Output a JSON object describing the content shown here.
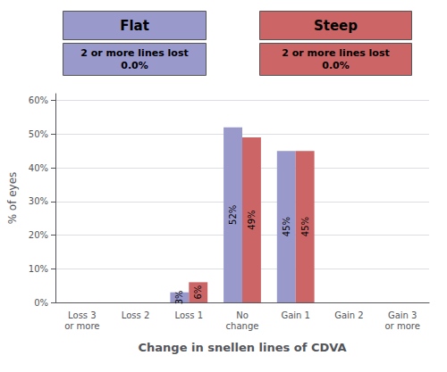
{
  "chart_data": {
    "type": "bar",
    "categories": [
      "Loss 3\nor more",
      "Loss 2",
      "Loss 1",
      "No\nchange",
      "Gain 1",
      "Gain 2",
      "Gain 3\nor more"
    ],
    "series": [
      {
        "name": "Flat",
        "color": "#9999CC",
        "values": [
          0,
          0,
          3,
          52,
          45,
          0,
          0
        ],
        "value_labels": [
          null,
          null,
          "3%",
          "52%",
          "45%",
          null,
          null
        ],
        "annotation": "2 or more lines lost\n0.0%"
      },
      {
        "name": "Steep",
        "color": "#CC6666",
        "values": [
          0,
          0,
          6,
          49,
          45,
          0,
          0
        ],
        "value_labels": [
          null,
          null,
          "6%",
          "49%",
          "45%",
          null,
          null
        ],
        "annotation": "2 or more lines lost\n0.0%"
      }
    ],
    "xlabel": "Change in snellen lines of CDVA",
    "ylabel": "% of eyes",
    "ylim": [
      0,
      62
    ],
    "yticks": [
      {
        "value": 0,
        "label": "0%"
      },
      {
        "value": 10,
        "label": "10%"
      },
      {
        "value": 20,
        "label": "20%"
      },
      {
        "value": 30,
        "label": "30%"
      },
      {
        "value": 40,
        "label": "40%"
      },
      {
        "value": 50,
        "label": "50%"
      },
      {
        "value": 60,
        "label": "60%"
      }
    ],
    "grid": true,
    "data_labels": true
  }
}
